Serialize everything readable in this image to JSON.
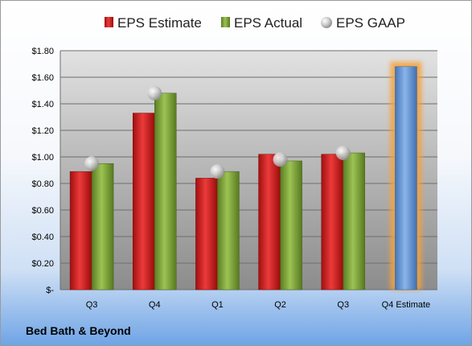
{
  "chart_data": {
    "type": "bar",
    "title": "",
    "xlabel": "",
    "ylabel": "",
    "categories": [
      "Q3",
      "Q4",
      "Q1",
      "Q2",
      "Q3",
      "Q4 Estimate"
    ],
    "ylim": [
      0,
      1.8
    ],
    "yticks": [
      {
        "value": 0,
        "label": "$-"
      },
      {
        "value": 0.2,
        "label": "$0.20"
      },
      {
        "value": 0.4,
        "label": "$0.40"
      },
      {
        "value": 0.6,
        "label": "$0.60"
      },
      {
        "value": 0.8,
        "label": "$0.80"
      },
      {
        "value": 1.0,
        "label": "$1.00"
      },
      {
        "value": 1.2,
        "label": "$1.20"
      },
      {
        "value": 1.4,
        "label": "$1.40"
      },
      {
        "value": 1.6,
        "label": "$1.60"
      },
      {
        "value": 1.8,
        "label": "$1.80"
      }
    ],
    "grid": true,
    "legend_position": "top",
    "series": [
      {
        "name": "EPS Estimate",
        "kind": "bar",
        "color": "#cc2020",
        "values": [
          0.89,
          1.33,
          0.84,
          1.02,
          1.02,
          null
        ]
      },
      {
        "name": "EPS Actual",
        "kind": "bar",
        "color": "#7aa23a",
        "values": [
          0.95,
          1.48,
          0.89,
          0.97,
          1.03,
          null
        ]
      },
      {
        "name": "EPS GAAP",
        "kind": "marker",
        "color": "#b4b4b4",
        "values": [
          0.95,
          1.48,
          0.89,
          0.98,
          1.03,
          null
        ]
      }
    ],
    "forecast": {
      "category_index": 5,
      "value": 1.68,
      "color": "#6a9bd8",
      "glow_color": "#f6a23a"
    }
  },
  "footer": {
    "company": "Bed Bath & Beyond"
  }
}
